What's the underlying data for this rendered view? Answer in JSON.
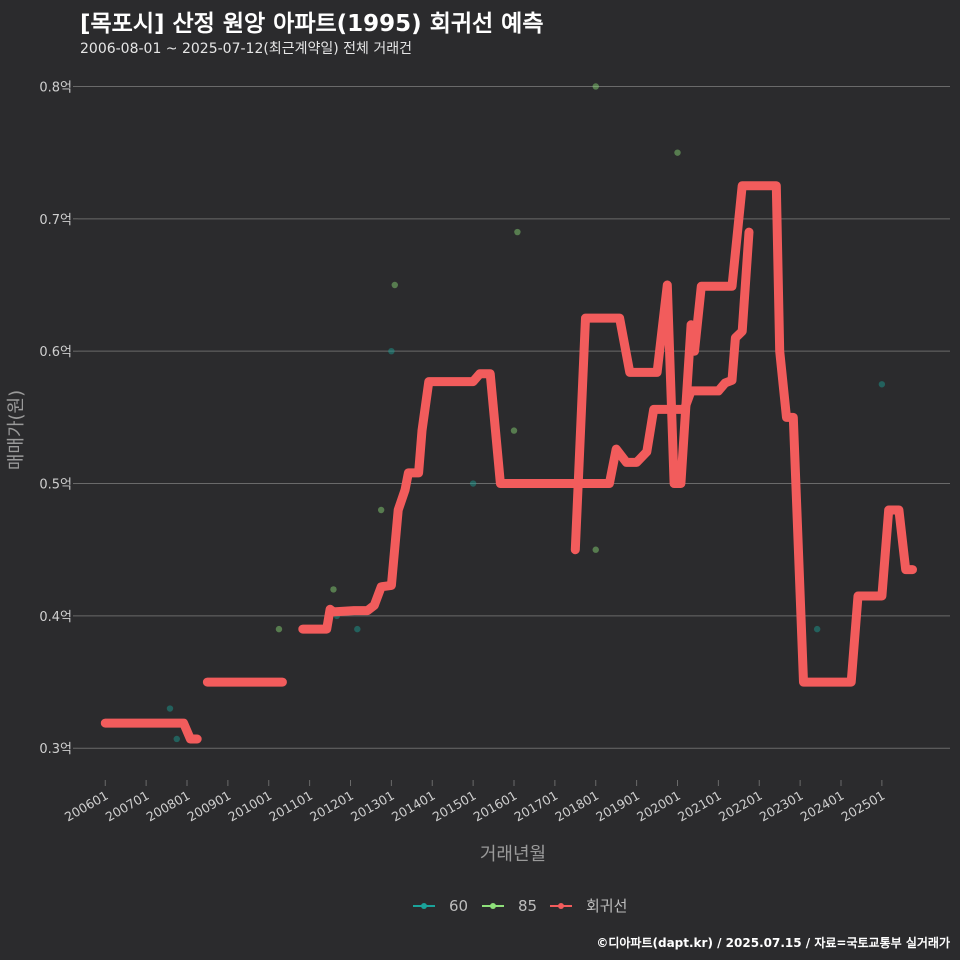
{
  "header": {
    "title": "[목포시] 산정 원앙 아파트(1995) 회귀선 예측",
    "subtitle": "2006-08-01 ~ 2025-07-12(최근계약일) 전체 거래건"
  },
  "footer": {
    "credit": "©디아파트(dapt.kr) / 2025.07.15 / 자료=국토교통부 실거래가"
  },
  "colors": {
    "background": "#2b2b2d",
    "grid": "#6a6a6a",
    "series_60": "#1aa39a",
    "series_85": "#8ee07a",
    "regression": "#f25c5c"
  },
  "chart_data": {
    "type": "line",
    "xlabel": "거래년월",
    "ylabel": "매매가(원)",
    "x_ticks": [
      "200601",
      "200701",
      "200801",
      "200901",
      "201001",
      "201101",
      "201201",
      "201301",
      "201401",
      "201501",
      "201601",
      "201701",
      "201801",
      "201901",
      "202001",
      "202101",
      "202201",
      "202301",
      "202401",
      "202501"
    ],
    "y_ticks": [
      {
        "value": 0.3,
        "label": "0.3억"
      },
      {
        "value": 0.4,
        "label": "0.4억"
      },
      {
        "value": 0.5,
        "label": "0.5억"
      },
      {
        "value": 0.6,
        "label": "0.6억"
      },
      {
        "value": 0.7,
        "label": "0.7억"
      },
      {
        "value": 0.8,
        "label": "0.8억"
      }
    ],
    "ylim": [
      0.276,
      0.82
    ],
    "xlim": [
      "2005-05",
      "2026-09"
    ],
    "grid": true,
    "legend_position": "bottom",
    "legend": [
      {
        "label": "60",
        "color": "#1aa39a"
      },
      {
        "label": "85",
        "color": "#8ee07a"
      },
      {
        "label": "회귀선",
        "color": "#f25c5c"
      }
    ],
    "scatter": [
      {
        "series": "60",
        "points": [
          [
            "2007-08",
            0.33
          ],
          [
            "2007-10",
            0.307
          ],
          [
            "2011-09",
            0.4
          ],
          [
            "2012-03",
            0.39
          ],
          [
            "2013-01",
            0.6
          ],
          [
            "2015-01",
            0.5
          ],
          [
            "2015-07",
            0.55
          ],
          [
            "2015-10",
            0.5
          ],
          [
            "2023-06",
            0.39
          ],
          [
            "2024-01",
            0.35
          ],
          [
            "2025-01",
            0.575
          ]
        ]
      },
      {
        "series": "85",
        "points": [
          [
            "2010-04",
            0.39
          ],
          [
            "2011-08",
            0.42
          ],
          [
            "2012-10",
            0.48
          ],
          [
            "2013-02",
            0.65
          ],
          [
            "2016-01",
            0.54
          ],
          [
            "2016-02",
            0.69
          ],
          [
            "2018-01",
            0.45
          ],
          [
            "2018-01",
            0.8
          ],
          [
            "2020-01",
            0.75
          ]
        ]
      }
    ],
    "regression_segments": [
      [
        [
          "2006-01",
          0.319
        ],
        [
          "2007-12",
          0.319
        ],
        [
          "2008-02",
          0.307
        ],
        [
          "2008-04",
          0.307
        ]
      ],
      [
        [
          "2008-07",
          0.35
        ],
        [
          "2010-05",
          0.35
        ]
      ],
      [
        [
          "2010-11",
          0.39
        ],
        [
          "2011-06",
          0.39
        ],
        [
          "2011-07",
          0.405
        ],
        [
          "2011-08",
          0.403
        ],
        [
          "2012-02",
          0.404
        ],
        [
          "2012-06",
          0.404
        ],
        [
          "2012-08",
          0.408
        ],
        [
          "2012-10",
          0.422
        ],
        [
          "2013-01",
          0.423
        ],
        [
          "2013-03",
          0.48
        ],
        [
          "2013-05",
          0.495
        ],
        [
          "2013-06",
          0.508
        ],
        [
          "2013-09",
          0.508
        ],
        [
          "2013-10",
          0.54
        ],
        [
          "2013-12",
          0.577
        ],
        [
          "2014-06",
          0.577
        ],
        [
          "2015-01",
          0.577
        ],
        [
          "2015-03",
          0.583
        ],
        [
          "2015-06",
          0.583
        ],
        [
          "2015-09",
          0.5
        ],
        [
          "2016-06",
          0.5
        ],
        [
          "2017-12",
          0.5
        ],
        [
          "2018-05",
          0.5
        ],
        [
          "2018-07",
          0.526
        ],
        [
          "2018-10",
          0.516
        ],
        [
          "2019-01",
          0.516
        ],
        [
          "2019-04",
          0.524
        ],
        [
          "2019-06",
          0.556
        ],
        [
          "2019-09",
          0.556
        ],
        [
          "2020-03",
          0.556
        ],
        [
          "2020-05",
          0.57
        ],
        [
          "2020-09",
          0.57
        ],
        [
          "2021-01",
          0.57
        ],
        [
          "2021-03",
          0.576
        ],
        [
          "2021-05",
          0.578
        ],
        [
          "2021-06",
          0.61
        ],
        [
          "2021-08",
          0.615
        ],
        [
          "2021-10",
          0.69
        ]
      ],
      [
        [
          "2017-07",
          0.45
        ],
        [
          "2017-10",
          0.625
        ],
        [
          "2018-08",
          0.625
        ],
        [
          "2018-11",
          0.584
        ],
        [
          "2019-07",
          0.584
        ],
        [
          "2019-10",
          0.65
        ],
        [
          "2019-12",
          0.5
        ],
        [
          "2020-02",
          0.5
        ],
        [
          "2020-05",
          0.62
        ],
        [
          "2020-06",
          0.6
        ],
        [
          "2020-08",
          0.649
        ],
        [
          "2021-02",
          0.649
        ],
        [
          "2021-05",
          0.649
        ],
        [
          "2021-08",
          0.725
        ],
        [
          "2022-03",
          0.725
        ],
        [
          "2022-06",
          0.725
        ],
        [
          "2022-07",
          0.6
        ],
        [
          "2022-09",
          0.55
        ],
        [
          "2022-11",
          0.55
        ],
        [
          "2023-02",
          0.35
        ],
        [
          "2023-10",
          0.35
        ],
        [
          "2024-04",
          0.35
        ],
        [
          "2024-06",
          0.415
        ],
        [
          "2024-10",
          0.415
        ],
        [
          "2025-01",
          0.415
        ],
        [
          "2025-03",
          0.48
        ],
        [
          "2025-06",
          0.48
        ],
        [
          "2025-08",
          0.435
        ],
        [
          "2025-10",
          0.435
        ]
      ]
    ]
  }
}
